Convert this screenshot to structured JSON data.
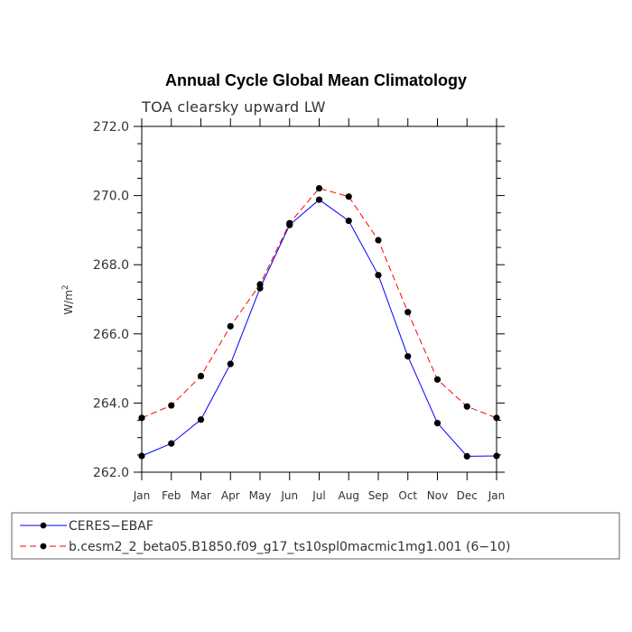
{
  "chart_data": {
    "type": "line",
    "title": "Annual Cycle Global Mean Climatology",
    "subtitle": "TOA clearsky upward LW",
    "xlabel": "",
    "ylabel": "W/m",
    "ylabel_superscript": "2",
    "categories": [
      "Jan",
      "Feb",
      "Mar",
      "Apr",
      "May",
      "Jun",
      "Jul",
      "Aug",
      "Sep",
      "Oct",
      "Nov",
      "Dec",
      "Jan"
    ],
    "ylim": [
      262.0,
      272.0
    ],
    "yticks": [
      262.0,
      264.0,
      266.0,
      268.0,
      270.0,
      272.0
    ],
    "ytick_labels": [
      "262.0",
      "264.0",
      "266.0",
      "268.0",
      "270.0",
      "272.0"
    ],
    "series": [
      {
        "name": "CERES−EBAF",
        "color": "#0000ff",
        "dash": "solid",
        "values": [
          262.47,
          262.83,
          263.52,
          265.13,
          267.32,
          269.15,
          269.88,
          269.27,
          267.7,
          265.35,
          263.42,
          262.46,
          262.47
        ]
      },
      {
        "name": "b.cesm2_2_beta05.B1850.f09_g17_ts10spl0macmic1mg1.001 (6−10)",
        "color": "#ff0000",
        "dash": "dashed",
        "values": [
          263.57,
          263.93,
          264.78,
          266.22,
          267.43,
          269.2,
          270.21,
          269.97,
          268.71,
          266.63,
          264.68,
          263.9,
          263.57
        ]
      }
    ],
    "legend_position": "bottom"
  }
}
